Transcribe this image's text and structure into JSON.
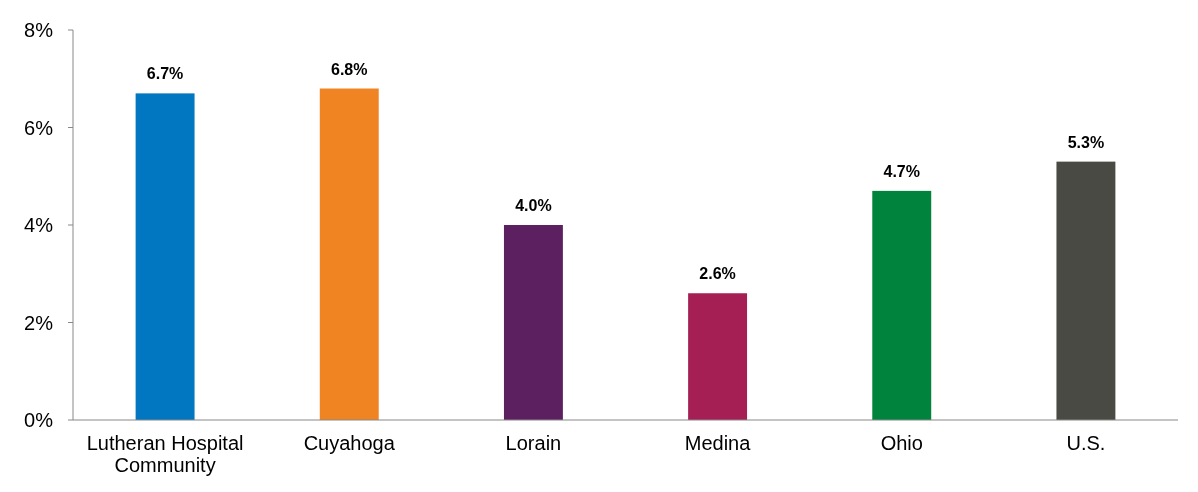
{
  "chart_data": {
    "type": "bar",
    "categories": [
      "Lutheran Hospital Community",
      "Cuyahoga",
      "Lorain",
      "Medina",
      "Ohio",
      "U.S."
    ],
    "values": [
      6.7,
      6.8,
      4.0,
      2.6,
      4.7,
      5.3
    ],
    "colors": [
      "#0077c0",
      "#f08423",
      "#5c2060",
      "#a51f55",
      "#00843d",
      "#4a4a44"
    ],
    "ylim": [
      0,
      8
    ],
    "yticks": [
      {
        "value": 0,
        "label": "0%"
      },
      {
        "value": 2,
        "label": "2%"
      },
      {
        "value": 4,
        "label": "4%"
      },
      {
        "value": 6,
        "label": "6%"
      },
      {
        "value": 8,
        "label": "8%"
      }
    ],
    "value_labels": [
      "6.7%",
      "6.8%",
      "4.0%",
      "2.6%",
      "4.7%",
      "5.3%"
    ],
    "grid": false
  }
}
